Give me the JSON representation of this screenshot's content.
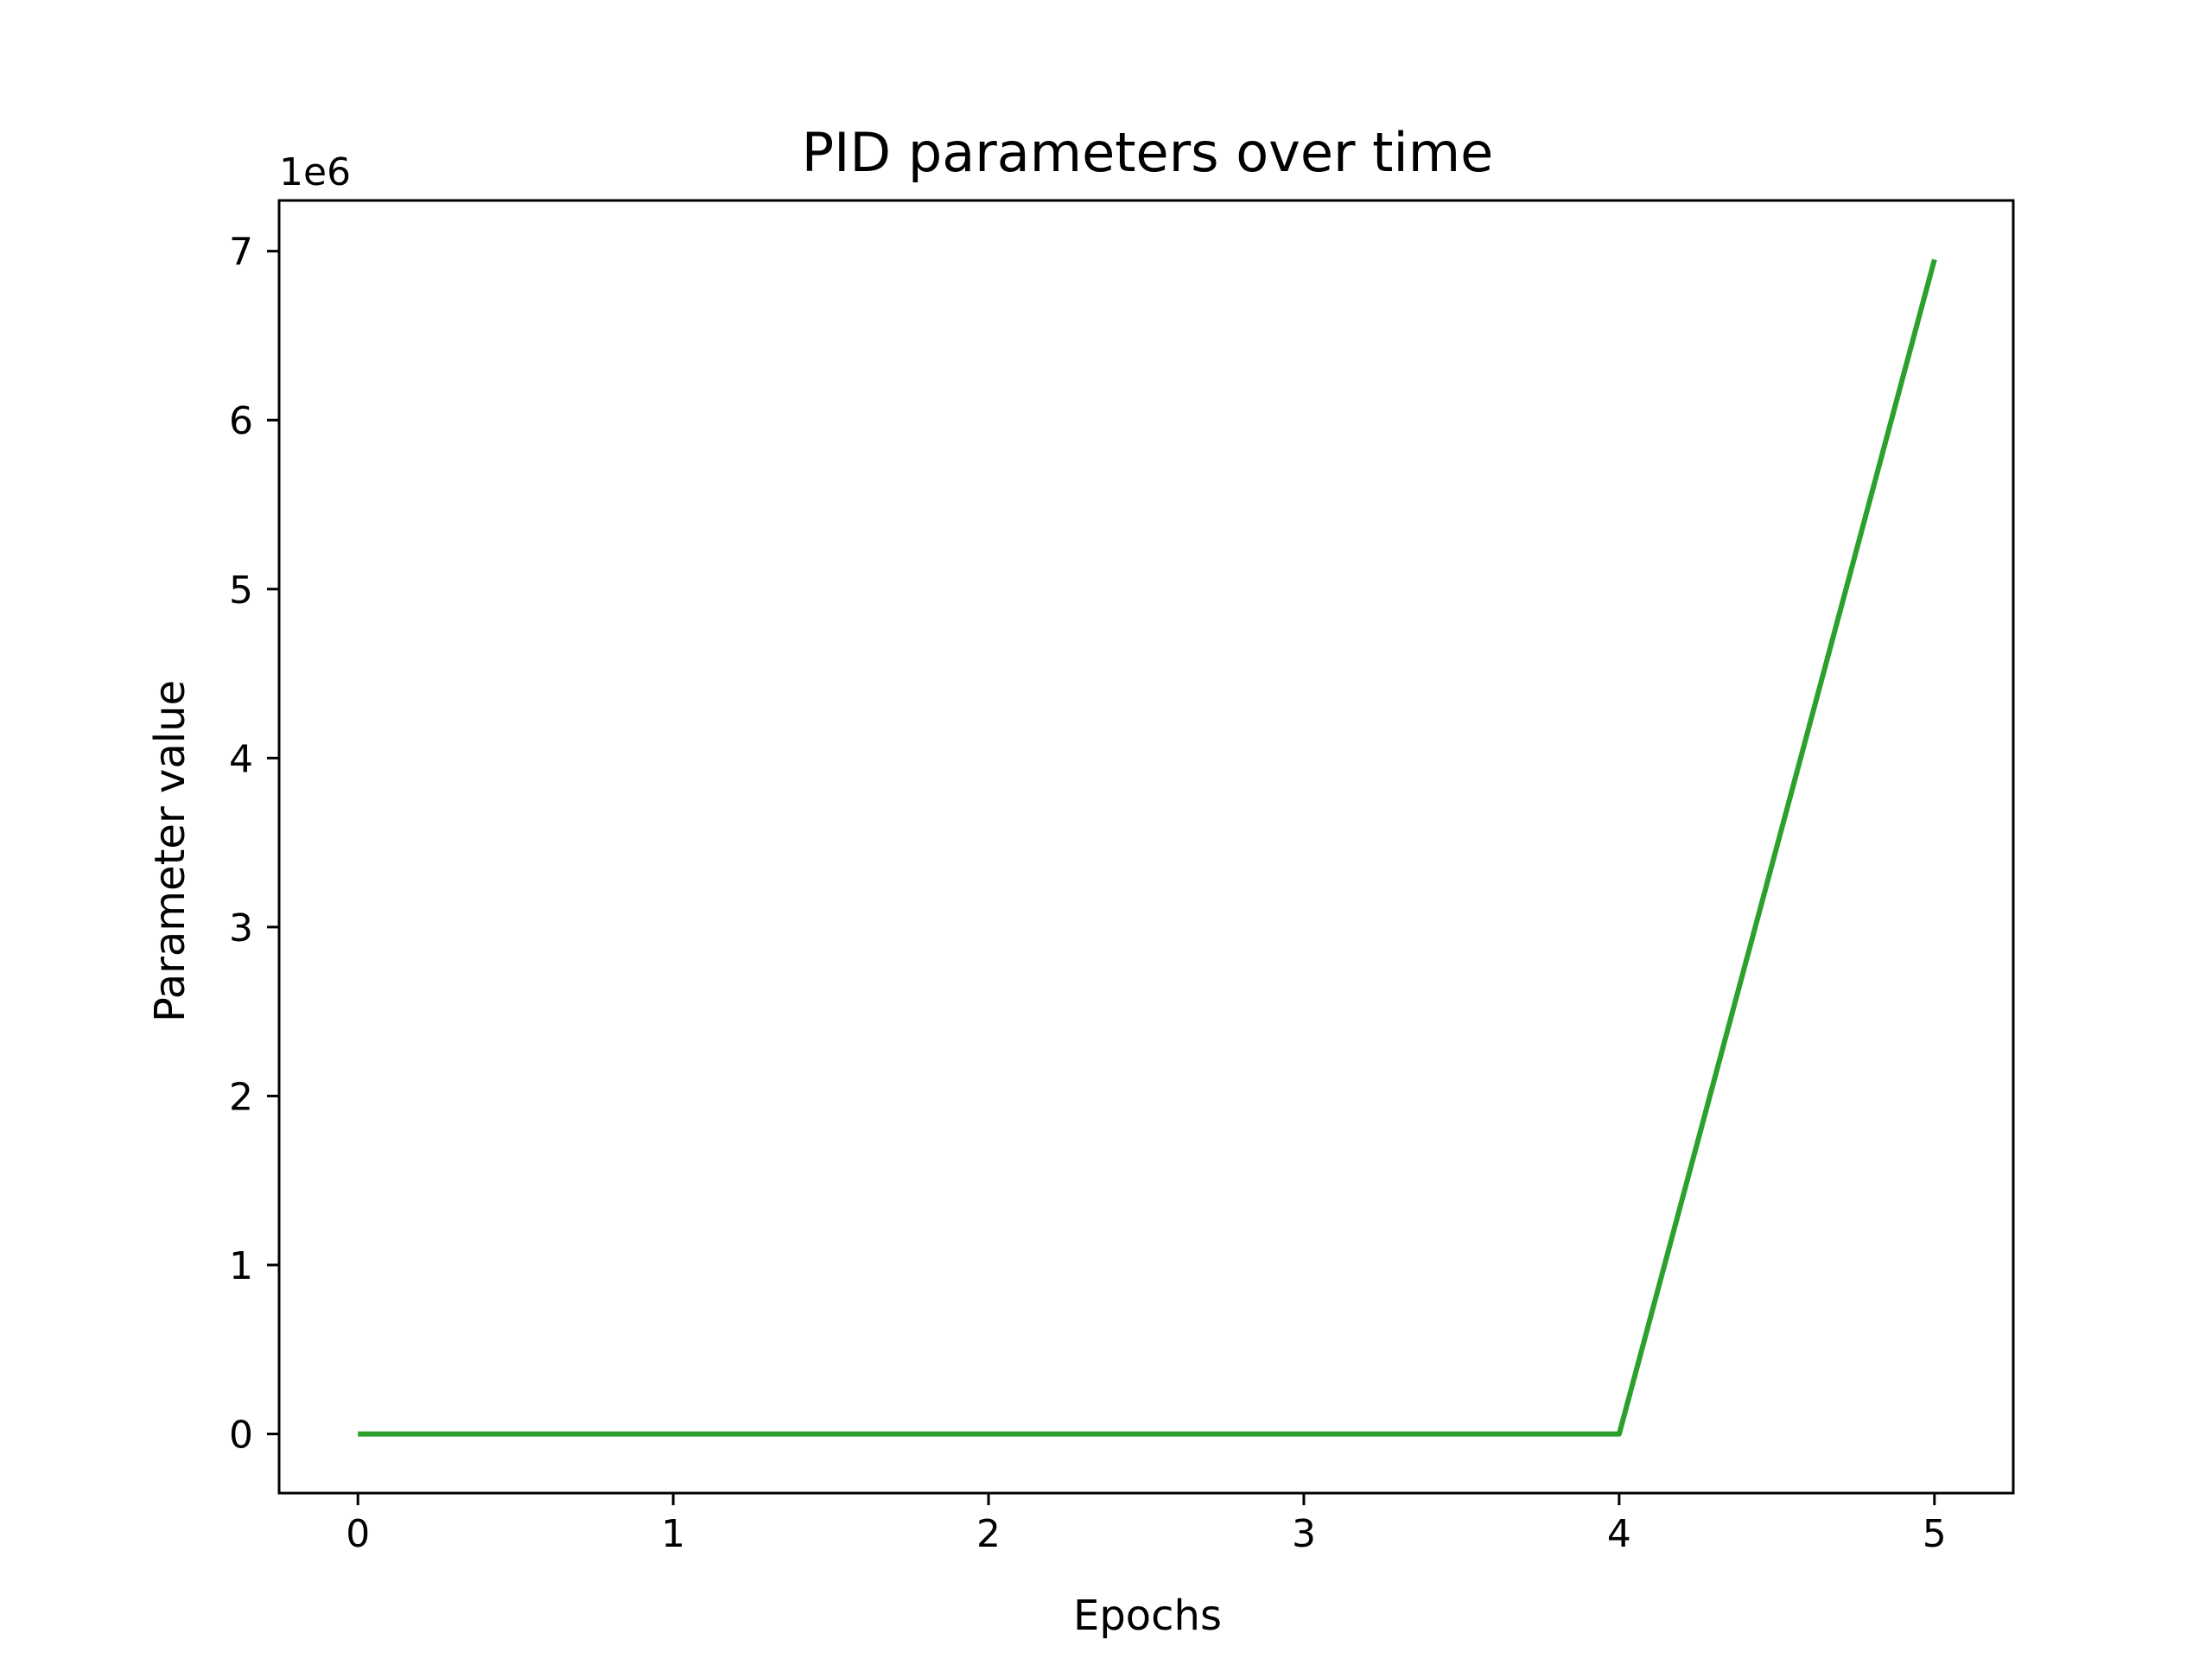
{
  "chart_data": {
    "type": "line",
    "title": "PID parameters over time",
    "xlabel": "Epochs",
    "ylabel": "Parameter value",
    "y_offset_label": "1e6",
    "xlim": [
      -0.25,
      5.25
    ],
    "ylim": [
      -0.35,
      7.3
    ],
    "x_ticks": [
      0,
      1,
      2,
      3,
      4,
      5
    ],
    "y_ticks": [
      0,
      1,
      2,
      3,
      4,
      5,
      6,
      7
    ],
    "x_tick_labels": [
      "0",
      "1",
      "2",
      "3",
      "4",
      "5"
    ],
    "y_tick_labels": [
      "0",
      "1",
      "2",
      "3",
      "4",
      "5",
      "6",
      "7"
    ],
    "grid": false,
    "series": [
      {
        "color": "#2ca02c",
        "x": [
          0,
          1,
          2,
          3,
          4,
          5
        ],
        "y": [
          0,
          0,
          0,
          0,
          0,
          6.95
        ]
      }
    ]
  }
}
